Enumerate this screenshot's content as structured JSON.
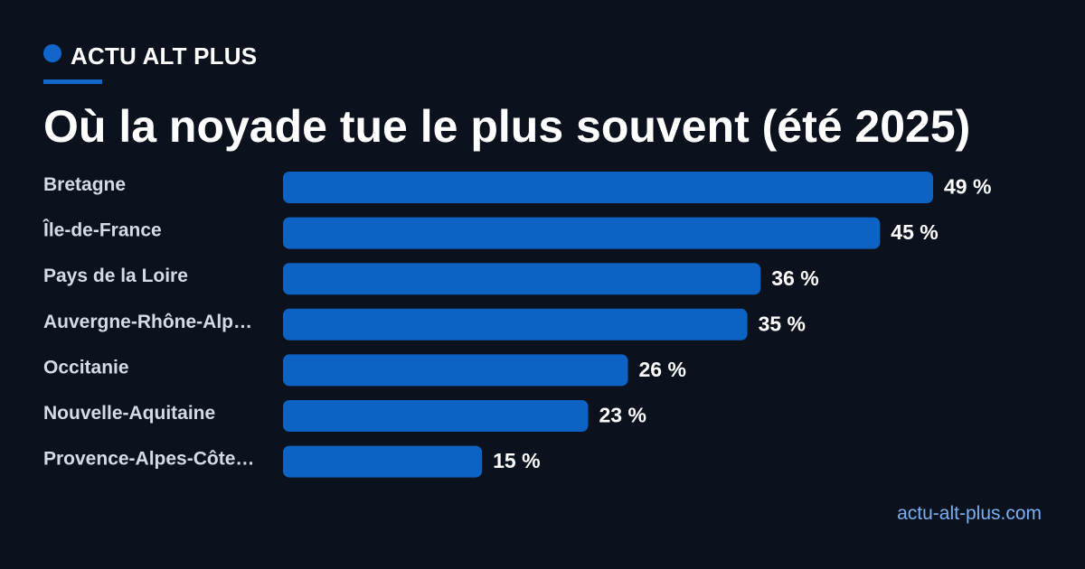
{
  "brand": {
    "name": "ACTU ALT PLUS"
  },
  "title": "Où la noyade tue le plus souvent (été 2025)",
  "footer": {
    "site": "actu-alt-plus.com"
  },
  "colors": {
    "background": "#0b121e",
    "accent": "#1366c9",
    "bar": "#0d63c4",
    "category_text": "#d3dbe6",
    "value_text": "#ffffff",
    "footer_text": "#79aef0"
  },
  "chart_data": {
    "type": "bar",
    "orientation": "horizontal",
    "categories": [
      "Bretagne",
      "Île-de-France",
      "Pays de la Loire",
      "Auvergne-Rhône-Alp…",
      "Occitanie",
      "Nouvelle-Aquitaine",
      "Provence-Alpes-Côte…"
    ],
    "values": [
      49,
      45,
      36,
      35,
      26,
      23,
      15
    ],
    "value_labels": [
      "49 %",
      "45 %",
      "36 %",
      "35 %",
      "26 %",
      "23 %",
      "15 %"
    ],
    "unit": "%",
    "xlim": [
      0,
      49
    ],
    "grid": false,
    "legend": "none"
  }
}
